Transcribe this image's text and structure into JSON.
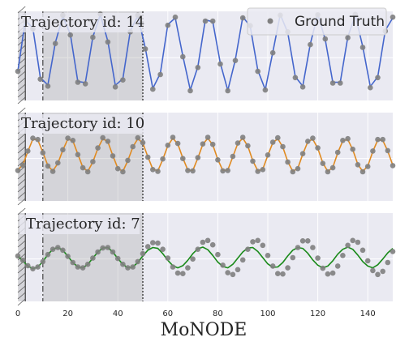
{
  "figure_title": "MoNODE",
  "legend": {
    "label": "Ground Truth",
    "marker_color": "#808080"
  },
  "x_ticks": [
    "0",
    "20",
    "40",
    "60",
    "80",
    "100",
    "120",
    "140"
  ],
  "chart_data": [
    {
      "type": "line",
      "title": "Trajectory id: 14",
      "line_color": "#4466cc",
      "xlim": [
        0,
        150
      ],
      "ylim": [
        -1.25,
        1.05
      ],
      "grid": true,
      "shaded_regions": [
        [
          0,
          3
        ],
        [
          10,
          50
        ]
      ],
      "vlines": [
        3,
        10,
        50
      ],
      "series": [
        {
          "role": "line",
          "x": [
            0,
            3,
            6,
            9,
            12,
            15,
            18,
            21,
            24,
            27,
            30,
            33,
            36,
            39,
            42,
            45,
            48,
            51,
            54,
            57,
            60,
            63,
            66,
            69,
            72,
            75,
            78,
            81,
            84,
            87,
            90,
            93,
            96,
            99,
            102,
            105,
            108,
            111,
            114,
            117,
            120,
            123,
            126,
            129,
            132,
            135,
            138,
            141,
            144,
            147,
            150
          ],
          "y": [
            -0.49,
            0.82,
            0.62,
            -0.66,
            -0.85,
            0.24,
            0.92,
            0.46,
            -0.76,
            -0.79,
            0.39,
            0.96,
            0.28,
            -0.86,
            -0.69,
            0.55,
            0.93,
            0.1,
            -0.94,
            -0.55,
            0.71,
            0.88,
            -0.1,
            -0.98,
            -0.38,
            0.83,
            0.78,
            -0.29,
            -0.99,
            -0.2,
            0.91,
            0.66,
            -0.47,
            -0.97,
            0.0,
            0.97,
            0.5,
            -0.64,
            -0.88,
            0.21,
            0.98,
            0.32,
            -0.78,
            -0.78,
            0.39,
            0.95,
            0.14,
            -0.89,
            -0.64,
            0.56,
            0.88
          ]
        },
        {
          "role": "ground_truth",
          "x": [
            0,
            3,
            6,
            9,
            12,
            15,
            18,
            21,
            24,
            27,
            30,
            33,
            36,
            39,
            42,
            45,
            48,
            51,
            54,
            57,
            60,
            63,
            66,
            69,
            72,
            75,
            78,
            81,
            84,
            87,
            90,
            93,
            96,
            99,
            102,
            105,
            108,
            111,
            114,
            117,
            120,
            123,
            126,
            129,
            132,
            135,
            138,
            141,
            144,
            147,
            150
          ],
          "y": [
            -0.5,
            0.8,
            0.6,
            -0.7,
            -0.88,
            0.22,
            0.95,
            0.44,
            -0.78,
            -0.82,
            0.38,
            0.98,
            0.26,
            -0.9,
            -0.72,
            0.52,
            0.95,
            0.08,
            -0.96,
            -0.58,
            0.69,
            0.9,
            -0.12,
            -1.0,
            -0.4,
            0.8,
            0.8,
            -0.31,
            -1.0,
            -0.22,
            0.88,
            0.68,
            -0.5,
            -0.98,
            -0.02,
            0.95,
            0.52,
            -0.66,
            -0.9,
            0.19,
            0.96,
            0.34,
            -0.8,
            -0.8,
            0.37,
            0.97,
            0.12,
            -0.92,
            -0.66,
            0.54,
            0.9
          ]
        }
      ]
    },
    {
      "type": "line",
      "title": "Trajectory id: 10",
      "line_color": "#e08a20",
      "xlim": [
        0,
        150
      ],
      "ylim": [
        -1.0,
        1.0
      ],
      "grid": true,
      "shaded_regions": [
        [
          0,
          3
        ],
        [
          10,
          50
        ]
      ],
      "vlines": [
        3,
        10,
        50
      ],
      "series": [
        {
          "role": "line",
          "x": [
            0,
            2,
            4,
            6,
            8,
            10,
            12,
            14,
            16,
            18,
            20,
            22,
            24,
            26,
            28,
            30,
            32,
            34,
            36,
            38,
            40,
            42,
            44,
            46,
            48,
            50,
            52,
            54,
            56,
            58,
            60,
            62,
            64,
            66,
            68,
            70,
            72,
            74,
            76,
            78,
            80,
            82,
            84,
            86,
            88,
            90,
            92,
            94,
            96,
            98,
            100,
            102,
            104,
            106,
            108,
            110,
            112,
            114,
            116,
            118,
            120,
            122,
            124,
            126,
            128,
            130,
            132,
            134,
            136,
            138,
            140,
            142,
            144,
            146,
            148,
            150
          ],
          "y": [
            -0.3,
            -0.18,
            0.12,
            0.4,
            0.38,
            0.1,
            -0.2,
            -0.32,
            -0.15,
            0.15,
            0.4,
            0.36,
            0.06,
            -0.24,
            -0.33,
            -0.12,
            0.19,
            0.41,
            0.34,
            0.03,
            -0.26,
            -0.33,
            -0.09,
            0.22,
            0.41,
            0.31,
            0.0,
            -0.28,
            -0.32,
            -0.06,
            0.25,
            0.42,
            0.29,
            -0.03,
            -0.3,
            -0.31,
            -0.03,
            0.28,
            0.42,
            0.27,
            -0.06,
            -0.31,
            -0.3,
            0.0,
            0.3,
            0.42,
            0.24,
            -0.09,
            -0.32,
            -0.28,
            0.03,
            0.32,
            0.41,
            0.22,
            -0.11,
            -0.33,
            -0.26,
            0.06,
            0.34,
            0.4,
            0.19,
            -0.14,
            -0.33,
            -0.24,
            0.09,
            0.36,
            0.39,
            0.16,
            -0.17,
            -0.33,
            -0.21,
            0.12,
            0.38,
            0.37,
            0.13,
            -0.19
          ]
        },
        {
          "role": "ground_truth",
          "x": [
            0,
            2,
            4,
            6,
            8,
            10,
            12,
            14,
            16,
            18,
            20,
            22,
            24,
            26,
            28,
            30,
            32,
            34,
            36,
            38,
            40,
            42,
            44,
            46,
            48,
            50,
            52,
            54,
            56,
            58,
            60,
            62,
            64,
            66,
            68,
            70,
            72,
            74,
            76,
            78,
            80,
            82,
            84,
            86,
            88,
            90,
            92,
            94,
            96,
            98,
            100,
            102,
            104,
            106,
            108,
            110,
            112,
            114,
            116,
            118,
            120,
            122,
            124,
            126,
            128,
            130,
            132,
            134,
            136,
            138,
            140,
            142,
            144,
            146,
            148,
            150
          ],
          "y": [
            -0.31,
            -0.19,
            0.13,
            0.42,
            0.39,
            0.09,
            -0.21,
            -0.33,
            -0.14,
            0.16,
            0.42,
            0.37,
            0.05,
            -0.25,
            -0.34,
            -0.11,
            0.2,
            0.43,
            0.35,
            0.02,
            -0.27,
            -0.34,
            -0.08,
            0.23,
            0.43,
            0.32,
            -0.01,
            -0.29,
            -0.33,
            -0.05,
            0.26,
            0.44,
            0.3,
            -0.04,
            -0.31,
            -0.32,
            -0.02,
            0.29,
            0.44,
            0.28,
            -0.07,
            -0.32,
            -0.31,
            0.01,
            0.31,
            0.44,
            0.25,
            -0.1,
            -0.33,
            -0.29,
            0.04,
            0.33,
            0.43,
            0.23,
            -0.12,
            -0.34,
            -0.27,
            0.07,
            0.35,
            0.42,
            0.2,
            -0.15,
            -0.34,
            -0.25,
            0.1,
            0.37,
            0.41,
            0.17,
            -0.18,
            -0.34,
            -0.22,
            0.13,
            0.39,
            0.39,
            0.14,
            -0.2
          ]
        }
      ]
    },
    {
      "type": "line",
      "title": "Trajectory id: 7",
      "line_color": "#1a8a1a",
      "xlim": [
        0,
        150
      ],
      "ylim": [
        -1.0,
        1.0
      ],
      "grid": true,
      "shaded_regions": [
        [
          0,
          3
        ],
        [
          10,
          50
        ]
      ],
      "vlines": [
        3,
        10,
        50
      ],
      "series": [
        {
          "role": "line",
          "x": [
            0,
            2,
            4,
            6,
            8,
            10,
            12,
            14,
            16,
            18,
            20,
            22,
            24,
            26,
            28,
            30,
            32,
            34,
            36,
            38,
            40,
            42,
            44,
            46,
            48,
            50,
            52,
            54,
            56,
            58,
            60,
            62,
            64,
            66,
            68,
            70,
            72,
            74,
            76,
            78,
            80,
            82,
            84,
            86,
            88,
            90,
            92,
            94,
            96,
            98,
            100,
            102,
            104,
            106,
            108,
            110,
            112,
            114,
            116,
            118,
            120,
            122,
            124,
            126,
            128,
            130,
            132,
            134,
            136,
            138,
            140,
            142,
            144,
            146,
            148,
            150
          ],
          "y": [
            0.02,
            -0.08,
            -0.2,
            -0.26,
            -0.22,
            -0.1,
            0.06,
            0.18,
            0.22,
            0.16,
            0.02,
            -0.12,
            -0.22,
            -0.24,
            -0.16,
            -0.02,
            0.12,
            0.21,
            0.22,
            0.12,
            -0.03,
            -0.16,
            -0.24,
            -0.22,
            -0.12,
            0.03,
            0.16,
            0.22,
            0.2,
            0.08,
            -0.07,
            -0.19,
            -0.24,
            -0.19,
            -0.07,
            0.08,
            0.19,
            0.23,
            0.17,
            0.04,
            -0.11,
            -0.21,
            -0.24,
            -0.16,
            -0.02,
            0.12,
            0.21,
            0.22,
            0.13,
            -0.01,
            -0.15,
            -0.23,
            -0.22,
            -0.12,
            0.03,
            0.16,
            0.22,
            0.2,
            0.09,
            -0.06,
            -0.18,
            -0.24,
            -0.2,
            -0.08,
            0.07,
            0.18,
            0.23,
            0.18,
            0.05,
            -0.1,
            -0.2,
            -0.24,
            -0.17,
            -0.04,
            0.1,
            0.2
          ]
        },
        {
          "role": "ground_truth",
          "x": [
            0,
            2,
            4,
            6,
            8,
            10,
            12,
            14,
            16,
            18,
            20,
            22,
            24,
            26,
            28,
            30,
            32,
            34,
            36,
            38,
            40,
            42,
            44,
            46,
            48,
            50,
            52,
            54,
            56,
            58,
            60,
            62,
            64,
            66,
            68,
            70,
            72,
            74,
            76,
            78,
            80,
            82,
            84,
            86,
            88,
            90,
            92,
            94,
            96,
            98,
            100,
            102,
            104,
            106,
            108,
            110,
            112,
            114,
            116,
            118,
            120,
            122,
            124,
            126,
            128,
            130,
            132,
            134,
            136,
            138,
            140,
            142,
            144,
            146,
            148,
            150
          ],
          "y": [
            0.03,
            -0.07,
            -0.19,
            -0.26,
            -0.22,
            -0.1,
            0.06,
            0.18,
            0.22,
            0.16,
            0.02,
            -0.12,
            -0.22,
            -0.24,
            -0.16,
            -0.02,
            0.12,
            0.21,
            0.22,
            0.12,
            -0.03,
            -0.16,
            -0.24,
            -0.22,
            -0.1,
            0.08,
            0.24,
            0.33,
            0.32,
            0.18,
            -0.02,
            -0.22,
            -0.36,
            -0.37,
            -0.24,
            -0.04,
            0.18,
            0.34,
            0.38,
            0.28,
            0.06,
            -0.18,
            -0.35,
            -0.39,
            -0.28,
            -0.06,
            0.18,
            0.35,
            0.38,
            0.27,
            0.04,
            -0.2,
            -0.37,
            -0.38,
            -0.24,
            -0.01,
            0.22,
            0.37,
            0.37,
            0.22,
            -0.02,
            -0.25,
            -0.38,
            -0.36,
            -0.2,
            0.04,
            0.27,
            0.38,
            0.34,
            0.16,
            -0.08,
            -0.3,
            -0.39,
            -0.32,
            -0.12,
            0.13
          ]
        }
      ]
    }
  ]
}
